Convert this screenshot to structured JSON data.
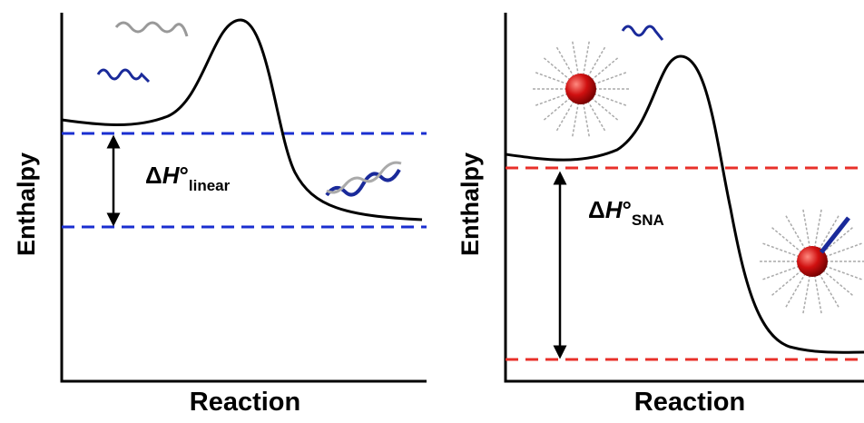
{
  "panels": [
    {
      "y_label": "Enthalpy",
      "x_label": "Reaction",
      "delta": "Δ",
      "symbol": "H",
      "degree": "°",
      "subscript": "linear"
    },
    {
      "y_label": "Enthalpy",
      "x_label": "Reaction",
      "delta": "Δ",
      "symbol": "H",
      "degree": "°",
      "subscript": "SNA"
    }
  ]
}
